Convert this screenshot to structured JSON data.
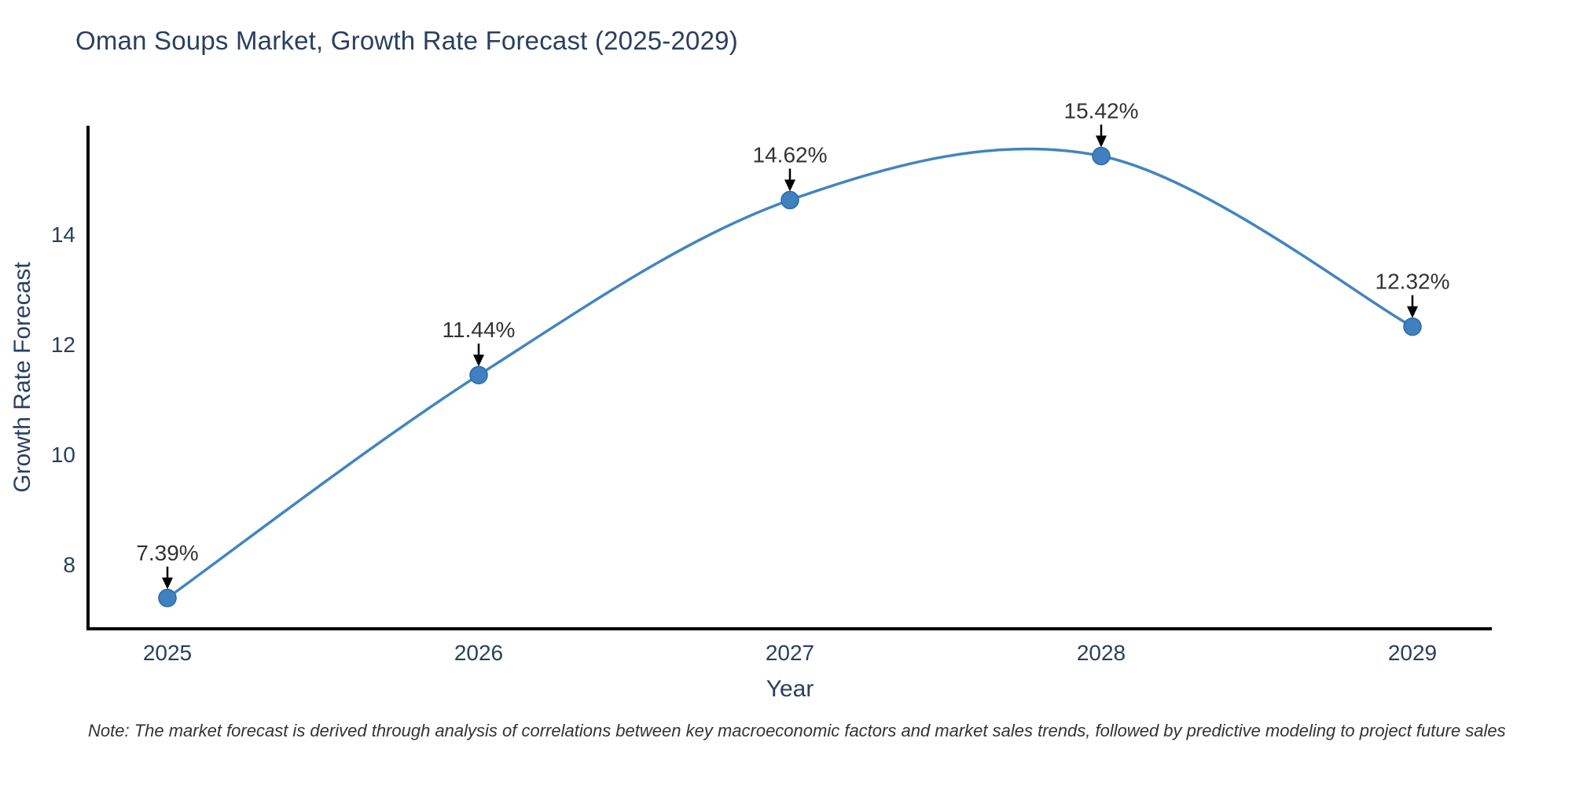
{
  "title": "Oman Soups Market, Growth Rate Forecast (2025-2029)",
  "note": "Note: The market forecast is derived through analysis of correlations between key macroeconomic factors and market sales trends, followed by predictive modeling to project future sales",
  "chart_data": {
    "type": "line",
    "title": "Oman Soups Market, Growth Rate Forecast (2025-2029)",
    "xlabel": "Year",
    "ylabel": "Growth Rate Forecast",
    "x": [
      "2025",
      "2026",
      "2027",
      "2028",
      "2029"
    ],
    "values": [
      7.39,
      11.44,
      14.62,
      15.42,
      12.32
    ],
    "point_labels": [
      "7.39%",
      "11.44%",
      "14.62%",
      "15.42%",
      "12.32%"
    ],
    "yticks": [
      8,
      10,
      12,
      14
    ],
    "ylim": [
      6.83,
      15.97
    ],
    "grid": false,
    "legend": "none",
    "curve": "spline",
    "colors": {
      "line": "#4285c0",
      "marker_fill": "#3f80c0",
      "marker_edge": "#2d6aa3",
      "axis_text": "#2a3f5f",
      "title_text": "#2a3f5f",
      "annotation_text": "#333333",
      "arrow": "#000000",
      "spine": "#000000",
      "background": "#ffffff"
    }
  }
}
